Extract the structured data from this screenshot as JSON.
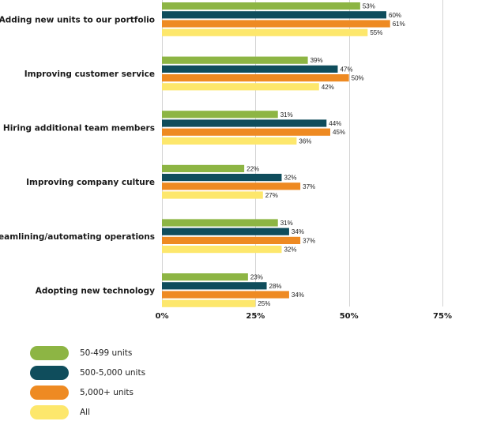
{
  "chart_data": {
    "type": "bar",
    "orientation": "horizontal",
    "categories": [
      "Adding new units to our portfolio",
      "Improving customer service",
      "Hiring additional team members",
      "Improving company culture",
      "Streamlining/automating operations",
      "Adopting new technology"
    ],
    "series": [
      {
        "name": "50-499 units",
        "color": "#8db544",
        "values": [
          53,
          39,
          31,
          22,
          31,
          23
        ]
      },
      {
        "name": "500-5,000 units",
        "color": "#0f4d5c",
        "values": [
          60,
          47,
          44,
          32,
          34,
          28
        ]
      },
      {
        "name": "5,000+ units",
        "color": "#ee8a22",
        "values": [
          61,
          50,
          45,
          37,
          37,
          34
        ]
      },
      {
        "name": "All",
        "color": "#fde76c",
        "values": [
          55,
          42,
          36,
          27,
          32,
          25
        ]
      }
    ],
    "data_labels": [
      [
        "53%",
        "39%",
        "31%",
        "22%",
        "31%",
        "23%"
      ],
      [
        "60%",
        "47%",
        "44%",
        "32%",
        "34%",
        "28%"
      ],
      [
        "61%",
        "50%",
        "45%",
        "37%",
        "37%",
        "34%"
      ],
      [
        "55%",
        "42%",
        "36%",
        "27%",
        "32%",
        "25%"
      ]
    ],
    "xlim": [
      0,
      75
    ],
    "x_ticks": [
      0,
      25,
      50,
      75
    ],
    "x_tick_labels": [
      "0%",
      "25%",
      "50%",
      "75%"
    ],
    "grid": true,
    "legend_position": "bottom-left",
    "title": "",
    "xlabel": "",
    "ylabel": ""
  }
}
